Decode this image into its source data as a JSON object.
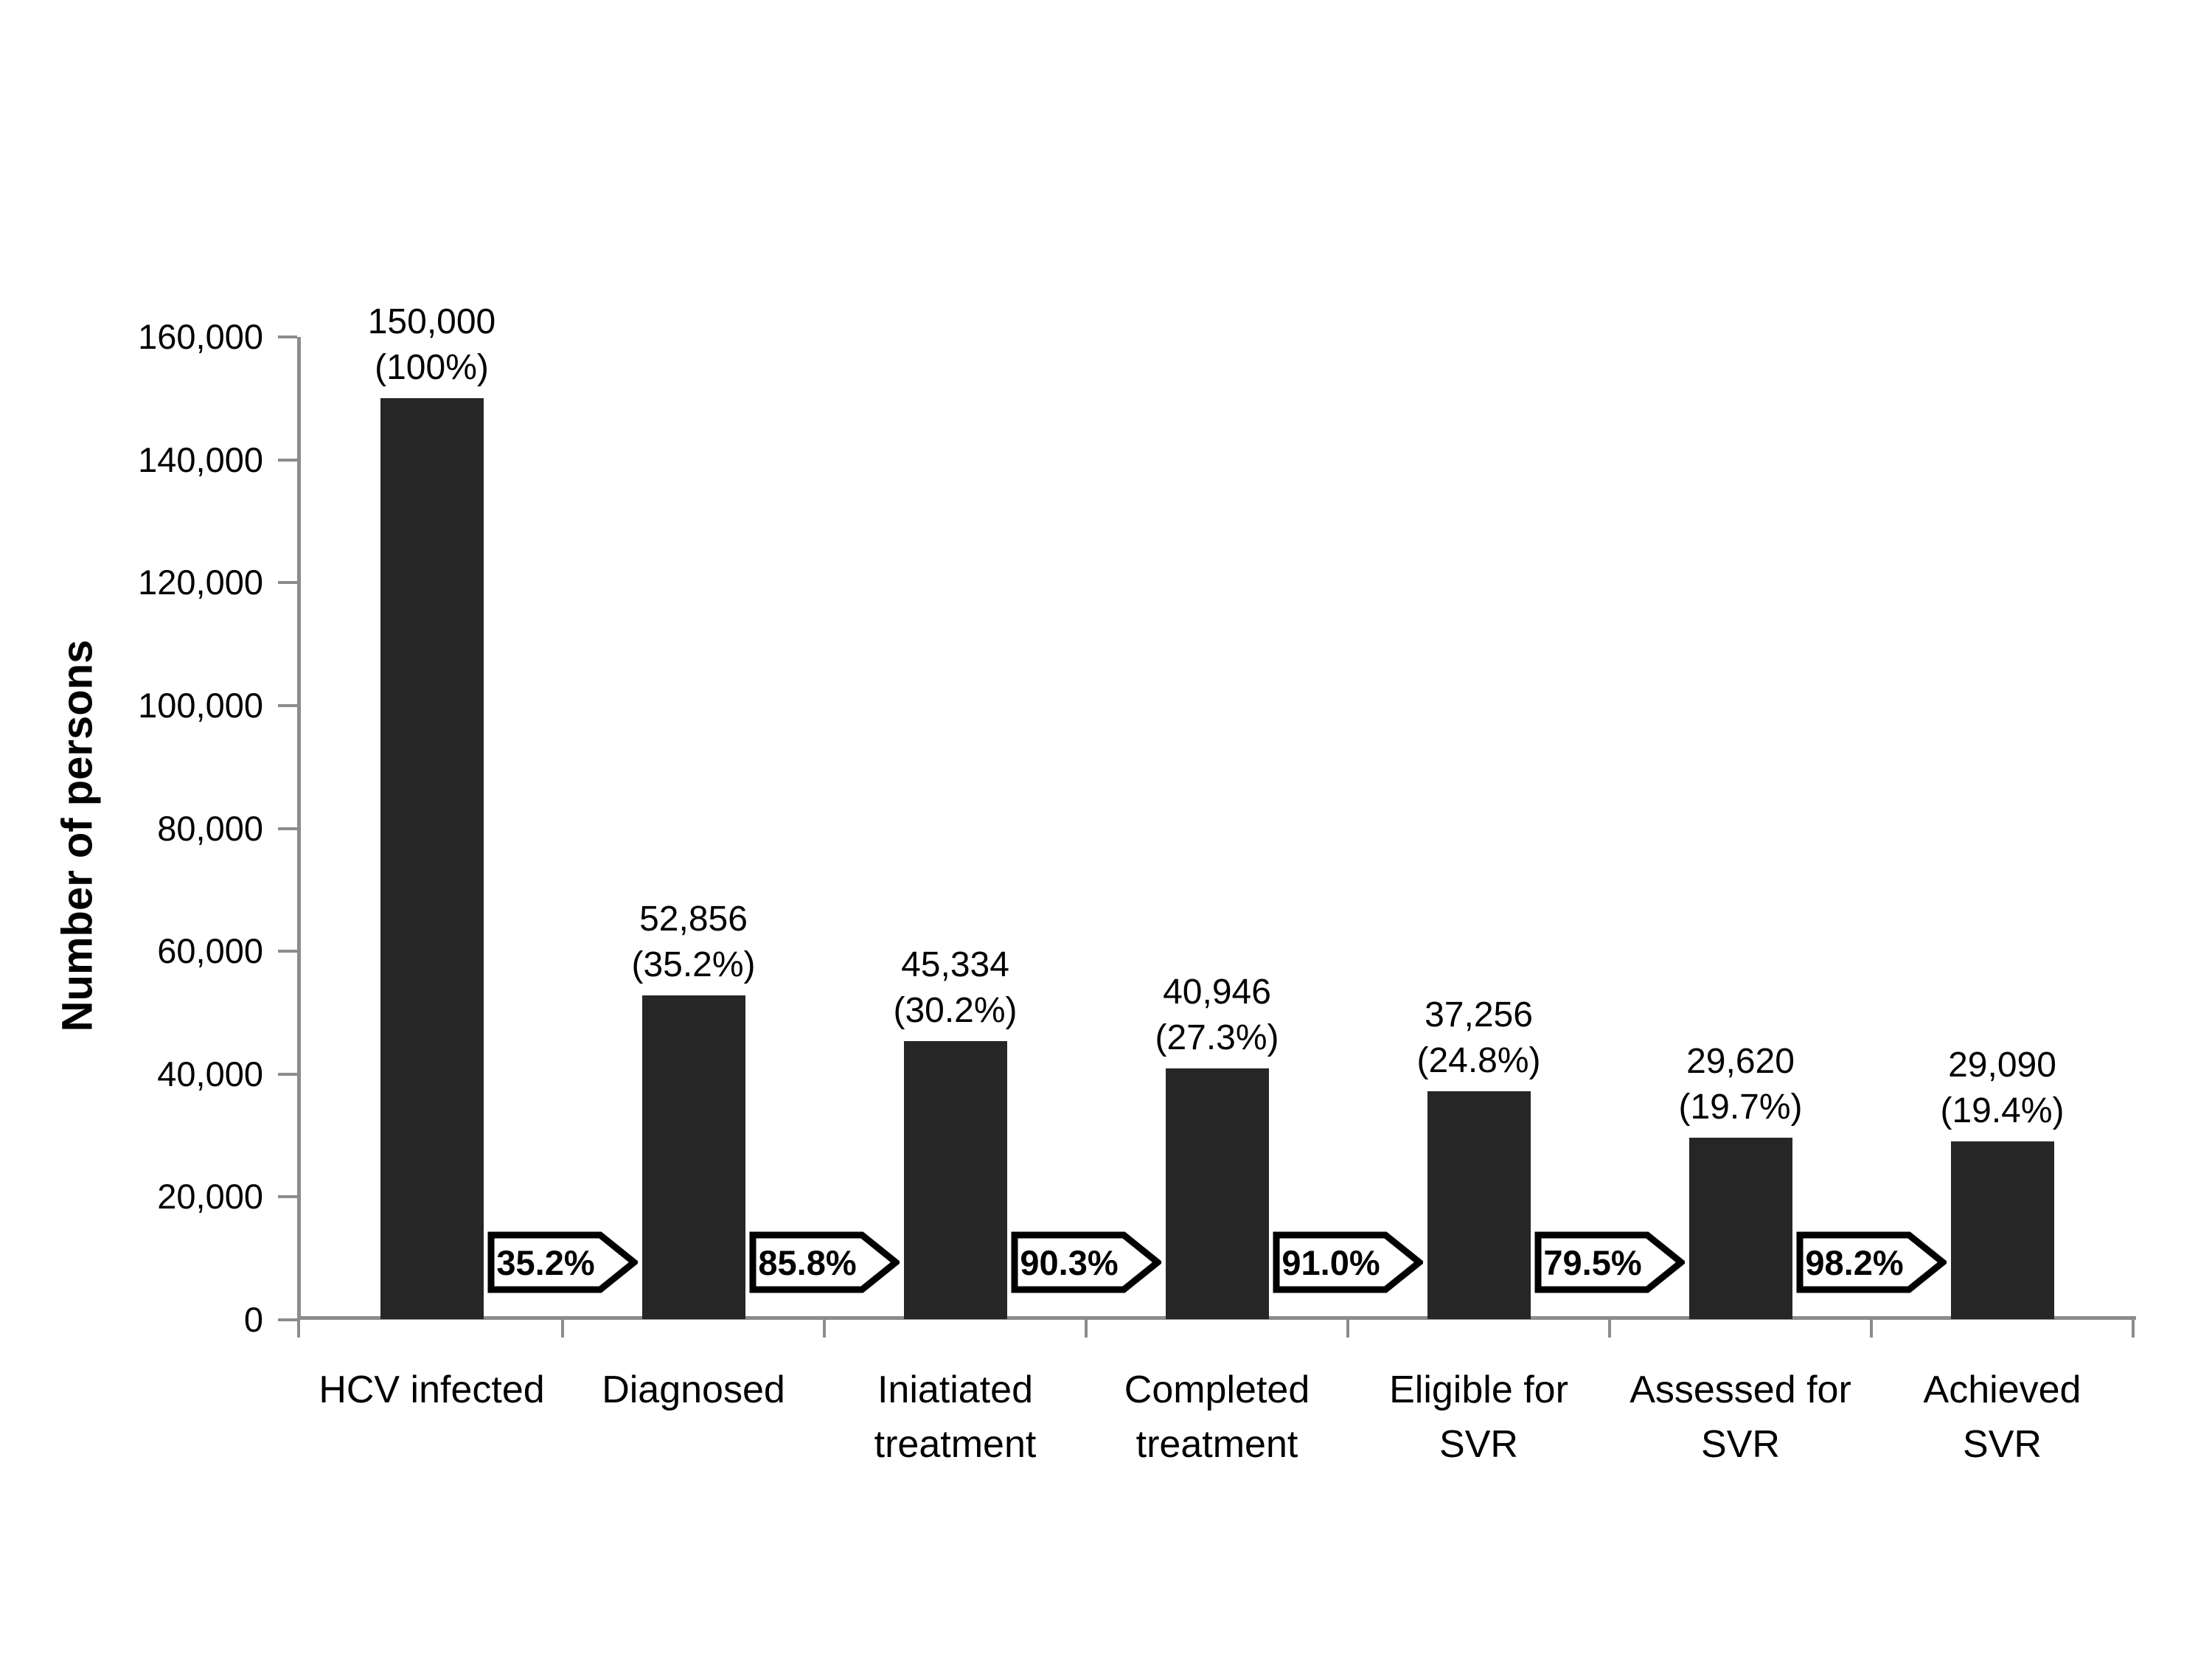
{
  "chart_data": {
    "type": "bar",
    "title": "",
    "xlabel": "",
    "ylabel": "Number of persons",
    "ylim": [
      0,
      160000
    ],
    "ytick_step": 20000,
    "ytick_labels": [
      "0",
      "20,000",
      "40,000",
      "60,000",
      "80,000",
      "100,000",
      "120,000",
      "140,000",
      "160,000"
    ],
    "grid": "off",
    "legend": "none",
    "categories": [
      "HCV infected",
      "Diagnosed",
      "Iniatiated\ntreatment",
      "Completed\ntreatment",
      "Eligible for\nSVR",
      "Assessed for\nSVR",
      "Achieved\nSVR"
    ],
    "values": [
      150000,
      52856,
      45334,
      40946,
      37256,
      29620,
      29090
    ],
    "bar_value_labels": [
      "150,000\n(100%)",
      "52,856\n(35.2%)",
      "45,334\n(30.2%)",
      "40,946\n(27.3%)",
      "37,256\n(24.8%)",
      "29,620\n(19.7%)",
      "29,090\n(19.4%)"
    ],
    "transition_arrow_labels": [
      "35.2%",
      "85.8%",
      "90.3%",
      "91.0%",
      "79.5%",
      "98.2%"
    ],
    "bar_color": "#262626",
    "axis_color": "#8c8c8c",
    "arrow_fill": "#ffffff",
    "arrow_border": "#000000",
    "text_color": "#000000"
  }
}
